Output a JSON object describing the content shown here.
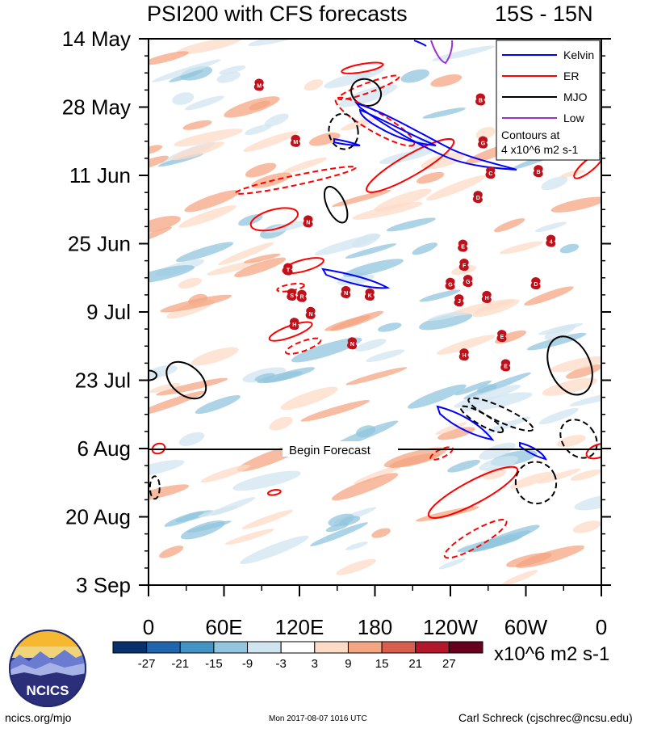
{
  "header": {
    "title_left": "PSI200 with CFS forecasts",
    "title_right": "15S - 15N"
  },
  "chart_data": {
    "type": "heatmap",
    "title": "PSI200 with CFS forecasts",
    "region": "15S - 15N",
    "y_axis": {
      "ticks": [
        "14 May",
        "28 May",
        "11 Jun",
        "25 Jun",
        "9 Jul",
        "23 Jul",
        "6 Aug",
        "20 Aug",
        "3 Sep"
      ],
      "range_days": [
        0,
        112
      ],
      "tick_step_days": 14
    },
    "x_axis": {
      "ticks": [
        "0",
        "60E",
        "120E",
        "180",
        "120W",
        "60W",
        "0"
      ],
      "range_lon": [
        0,
        360
      ],
      "tick_step_deg": 60
    },
    "forecast_line": {
      "label": "Begin Forecast",
      "day": 84
    },
    "colorbar": {
      "levels": [
        -27,
        -21,
        -15,
        -9,
        -3,
        3,
        9,
        15,
        21,
        27
      ],
      "labels": [
        "-27",
        "-21",
        "-15",
        "-9",
        "-3",
        "3",
        "9",
        "15",
        "21",
        "27"
      ],
      "colors": [
        "#08306b",
        "#2166ac",
        "#4393c3",
        "#92c5de",
        "#d1e5f0",
        "#ffffff",
        "#fddbc7",
        "#f4a582",
        "#d6604d",
        "#b2182b",
        "#67001f"
      ],
      "units": "x10^6 m2 s-1"
    },
    "legend": {
      "position": "top-right",
      "items": [
        {
          "label": "Kelvin",
          "color": "#0000ff"
        },
        {
          "label": "ER",
          "color": "#ff0000"
        },
        {
          "label": "MJO",
          "color": "#000000"
        },
        {
          "label": "Low",
          "color": "#9932cc"
        }
      ],
      "note_line1": "Contours at",
      "note_line2": "4 x10^6 m2 s-1"
    },
    "storms": [
      {
        "lon": 88,
        "day": 9.5,
        "letter": "M"
      },
      {
        "lon": 117,
        "day": 21,
        "letter": "M"
      },
      {
        "lon": 127,
        "day": 37.5,
        "letter": "N"
      },
      {
        "lon": 111,
        "day": 47.3,
        "letter": "T"
      },
      {
        "lon": 114,
        "day": 52.5,
        "letter": "S"
      },
      {
        "lon": 122,
        "day": 52.8,
        "letter": "R"
      },
      {
        "lon": 157,
        "day": 52,
        "letter": "N"
      },
      {
        "lon": 176,
        "day": 52.5,
        "letter": "K"
      },
      {
        "lon": 116,
        "day": 58.5,
        "letter": "H"
      },
      {
        "lon": 129,
        "day": 56.3,
        "letter": "N"
      },
      {
        "lon": 162,
        "day": 62.5,
        "letter": "N"
      },
      {
        "lon": 264,
        "day": 12.5,
        "letter": "B"
      },
      {
        "lon": 266,
        "day": 21.3,
        "letter": "G"
      },
      {
        "lon": 272,
        "day": 27.5,
        "letter": "C"
      },
      {
        "lon": 310,
        "day": 27.2,
        "letter": "B"
      },
      {
        "lon": 262,
        "day": 32.5,
        "letter": "D"
      },
      {
        "lon": 320,
        "day": 41.5,
        "letter": "4"
      },
      {
        "lon": 250,
        "day": 42.5,
        "letter": "E"
      },
      {
        "lon": 251,
        "day": 46.4,
        "letter": "F"
      },
      {
        "lon": 240,
        "day": 50.3,
        "letter": "G"
      },
      {
        "lon": 254,
        "day": 49.7,
        "letter": "G"
      },
      {
        "lon": 269,
        "day": 53,
        "letter": "H"
      },
      {
        "lon": 247,
        "day": 53.7,
        "letter": "J"
      },
      {
        "lon": 308,
        "day": 50.2,
        "letter": "D"
      },
      {
        "lon": 281,
        "day": 61,
        "letter": "E"
      },
      {
        "lon": 251,
        "day": 64.8,
        "letter": "H"
      },
      {
        "lon": 284,
        "day": 67,
        "letter": "E"
      }
    ]
  },
  "footer": {
    "left": "ncics.org/mjo",
    "center": "Mon 2017-08-07 1016 UTC",
    "right": "Carl Schreck (cjschrec@ncsu.edu)",
    "logo_text": "NCICS"
  }
}
